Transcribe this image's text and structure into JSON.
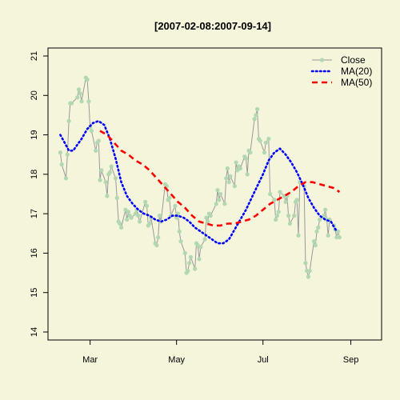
{
  "chart_data": {
    "type": "line",
    "title": "[2007-02-08:2007-09-14]",
    "xlabel": "",
    "ylabel": "",
    "x_range": [
      "2007-02-08",
      "2007-09-14"
    ],
    "ylim": [
      14,
      21
    ],
    "x_ticks": [
      {
        "date": "2007-03-01",
        "label": "Mar"
      },
      {
        "date": "2007-05-01",
        "label": "May"
      },
      {
        "date": "2007-07-01",
        "label": "Jul"
      },
      {
        "date": "2007-09-01",
        "label": "Sep"
      }
    ],
    "y_ticks": [
      14,
      15,
      16,
      17,
      18,
      19,
      20,
      21
    ],
    "grid": false,
    "legend_position": "top-right",
    "series": [
      {
        "name": "Close",
        "style": "points-line",
        "color": "#b2d8b2",
        "line_color": "#999999",
        "points": [
          [
            "2007-02-08",
            18.55
          ],
          [
            "2007-02-09",
            18.25
          ],
          [
            "2007-02-12",
            17.9
          ],
          [
            "2007-02-13",
            18.5
          ],
          [
            "2007-02-14",
            19.35
          ],
          [
            "2007-02-15",
            19.8
          ],
          [
            "2007-02-16",
            19.8
          ],
          [
            "2007-02-20",
            19.95
          ],
          [
            "2007-02-21",
            20.15
          ],
          [
            "2007-02-22",
            20.05
          ],
          [
            "2007-02-23",
            19.85
          ],
          [
            "2007-02-26",
            20.45
          ],
          [
            "2007-02-27",
            20.4
          ],
          [
            "2007-02-28",
            19.85
          ],
          [
            "2007-03-01",
            19.2
          ],
          [
            "2007-03-02",
            19.1
          ],
          [
            "2007-03-05",
            18.6
          ],
          [
            "2007-03-06",
            18.8
          ],
          [
            "2007-03-07",
            18.85
          ],
          [
            "2007-03-08",
            17.85
          ],
          [
            "2007-03-09",
            18.1
          ],
          [
            "2007-03-12",
            17.8
          ],
          [
            "2007-03-13",
            17.45
          ],
          [
            "2007-03-14",
            18.0
          ],
          [
            "2007-03-15",
            18.05
          ],
          [
            "2007-03-16",
            18.2
          ],
          [
            "2007-03-19",
            17.9
          ],
          [
            "2007-03-20",
            17.4
          ],
          [
            "2007-03-21",
            16.8
          ],
          [
            "2007-03-22",
            16.75
          ],
          [
            "2007-03-23",
            16.65
          ],
          [
            "2007-03-26",
            17.1
          ],
          [
            "2007-03-27",
            16.85
          ],
          [
            "2007-03-28",
            17.05
          ],
          [
            "2007-03-29",
            16.95
          ],
          [
            "2007-03-30",
            16.9
          ],
          [
            "2007-04-02",
            17.0
          ],
          [
            "2007-04-03",
            17.1
          ],
          [
            "2007-04-04",
            16.95
          ],
          [
            "2007-04-05",
            16.8
          ],
          [
            "2007-04-09",
            17.3
          ],
          [
            "2007-04-10",
            17.2
          ],
          [
            "2007-04-11",
            16.7
          ],
          [
            "2007-04-12",
            16.75
          ],
          [
            "2007-04-13",
            16.9
          ],
          [
            "2007-04-16",
            16.25
          ],
          [
            "2007-04-17",
            16.2
          ],
          [
            "2007-04-18",
            16.4
          ],
          [
            "2007-04-19",
            16.95
          ],
          [
            "2007-04-20",
            16.8
          ],
          [
            "2007-04-23",
            17.75
          ],
          [
            "2007-04-24",
            17.7
          ],
          [
            "2007-04-25",
            17.35
          ],
          [
            "2007-04-26",
            17.4
          ],
          [
            "2007-04-27",
            16.95
          ],
          [
            "2007-04-30",
            17.2
          ],
          [
            "2007-05-01",
            16.9
          ],
          [
            "2007-05-02",
            17.0
          ],
          [
            "2007-05-03",
            16.55
          ],
          [
            "2007-05-04",
            16.3
          ],
          [
            "2007-05-07",
            16.0
          ],
          [
            "2007-05-08",
            15.5
          ],
          [
            "2007-05-09",
            15.55
          ],
          [
            "2007-05-10",
            15.75
          ],
          [
            "2007-05-11",
            15.9
          ],
          [
            "2007-05-14",
            15.6
          ],
          [
            "2007-05-15",
            16.25
          ],
          [
            "2007-05-16",
            16.2
          ],
          [
            "2007-05-17",
            15.85
          ],
          [
            "2007-05-18",
            16.15
          ],
          [
            "2007-05-21",
            16.35
          ],
          [
            "2007-05-22",
            16.9
          ],
          [
            "2007-05-23",
            16.8
          ],
          [
            "2007-05-24",
            17.0
          ],
          [
            "2007-05-25",
            16.95
          ],
          [
            "2007-05-29",
            17.25
          ],
          [
            "2007-05-30",
            17.6
          ],
          [
            "2007-05-31",
            17.35
          ],
          [
            "2007-06-01",
            17.5
          ],
          [
            "2007-06-04",
            17.25
          ],
          [
            "2007-06-05",
            17.9
          ],
          [
            "2007-06-06",
            18.15
          ],
          [
            "2007-06-07",
            17.8
          ],
          [
            "2007-06-08",
            17.95
          ],
          [
            "2007-06-11",
            17.7
          ],
          [
            "2007-06-12",
            18.3
          ],
          [
            "2007-06-13",
            18.1
          ],
          [
            "2007-06-14",
            18.2
          ],
          [
            "2007-06-15",
            18.15
          ],
          [
            "2007-06-18",
            18.45
          ],
          [
            "2007-06-19",
            18.4
          ],
          [
            "2007-06-20",
            18.0
          ],
          [
            "2007-06-21",
            18.6
          ],
          [
            "2007-06-22",
            18.55
          ],
          [
            "2007-06-25",
            19.4
          ],
          [
            "2007-06-26",
            19.5
          ],
          [
            "2007-06-27",
            19.65
          ],
          [
            "2007-06-28",
            18.9
          ],
          [
            "2007-06-29",
            18.85
          ],
          [
            "2007-07-02",
            18.55
          ],
          [
            "2007-07-03",
            18.8
          ],
          [
            "2007-07-05",
            18.9
          ],
          [
            "2007-07-06",
            17.5
          ],
          [
            "2007-07-09",
            17.35
          ],
          [
            "2007-07-10",
            16.85
          ],
          [
            "2007-07-11",
            16.95
          ],
          [
            "2007-07-12",
            17.05
          ],
          [
            "2007-07-13",
            17.55
          ],
          [
            "2007-07-16",
            17.45
          ],
          [
            "2007-07-17",
            17.3
          ],
          [
            "2007-07-18",
            17.45
          ],
          [
            "2007-07-19",
            16.95
          ],
          [
            "2007-07-20",
            16.75
          ],
          [
            "2007-07-23",
            16.95
          ],
          [
            "2007-07-24",
            17.3
          ],
          [
            "2007-07-25",
            17.35
          ],
          [
            "2007-07-26",
            16.45
          ],
          [
            "2007-07-27",
            17.8
          ],
          [
            "2007-07-30",
            17.7
          ],
          [
            "2007-07-31",
            15.75
          ],
          [
            "2007-08-01",
            15.55
          ],
          [
            "2007-08-02",
            15.4
          ],
          [
            "2007-08-03",
            15.55
          ],
          [
            "2007-08-06",
            16.3
          ],
          [
            "2007-08-07",
            16.2
          ],
          [
            "2007-08-08",
            16.55
          ],
          [
            "2007-08-09",
            16.65
          ],
          [
            "2007-08-10",
            16.85
          ],
          [
            "2007-08-13",
            16.95
          ],
          [
            "2007-08-14",
            17.1
          ],
          [
            "2007-08-15",
            16.85
          ],
          [
            "2007-08-16",
            16.45
          ],
          [
            "2007-08-17",
            16.85
          ],
          [
            "2007-08-20",
            16.7
          ],
          [
            "2007-08-21",
            16.6
          ],
          [
            "2007-08-22",
            16.4
          ],
          [
            "2007-08-23",
            16.55
          ],
          [
            "2007-08-24",
            16.4
          ]
        ]
      },
      {
        "name": "MA(20)",
        "style": "dotted",
        "color": "#0000ff",
        "points": [
          [
            "2007-02-08",
            19.0
          ],
          [
            "2007-02-11",
            18.8
          ],
          [
            "2007-02-14",
            18.6
          ],
          [
            "2007-02-17",
            18.6
          ],
          [
            "2007-02-20",
            18.75
          ],
          [
            "2007-02-23",
            18.9
          ],
          [
            "2007-02-27",
            19.15
          ],
          [
            "2007-03-03",
            19.3
          ],
          [
            "2007-03-07",
            19.35
          ],
          [
            "2007-03-11",
            19.25
          ],
          [
            "2007-03-15",
            18.9
          ],
          [
            "2007-03-19",
            18.4
          ],
          [
            "2007-03-23",
            17.8
          ],
          [
            "2007-03-27",
            17.45
          ],
          [
            "2007-03-31",
            17.25
          ],
          [
            "2007-04-04",
            17.1
          ],
          [
            "2007-04-08",
            17.0
          ],
          [
            "2007-04-12",
            16.95
          ],
          [
            "2007-04-16",
            16.85
          ],
          [
            "2007-04-20",
            16.8
          ],
          [
            "2007-04-24",
            16.85
          ],
          [
            "2007-04-28",
            16.95
          ],
          [
            "2007-05-02",
            16.95
          ],
          [
            "2007-05-06",
            16.9
          ],
          [
            "2007-05-10",
            16.8
          ],
          [
            "2007-05-14",
            16.65
          ],
          [
            "2007-05-18",
            16.55
          ],
          [
            "2007-05-22",
            16.45
          ],
          [
            "2007-05-26",
            16.35
          ],
          [
            "2007-05-30",
            16.25
          ],
          [
            "2007-06-03",
            16.25
          ],
          [
            "2007-06-07",
            16.35
          ],
          [
            "2007-06-11",
            16.6
          ],
          [
            "2007-06-15",
            16.85
          ],
          [
            "2007-06-19",
            17.1
          ],
          [
            "2007-06-23",
            17.4
          ],
          [
            "2007-06-27",
            17.7
          ],
          [
            "2007-07-01",
            18.0
          ],
          [
            "2007-07-05",
            18.35
          ],
          [
            "2007-07-09",
            18.55
          ],
          [
            "2007-07-13",
            18.65
          ],
          [
            "2007-07-17",
            18.5
          ],
          [
            "2007-07-21",
            18.3
          ],
          [
            "2007-07-25",
            18.05
          ],
          [
            "2007-07-29",
            17.75
          ],
          [
            "2007-08-02",
            17.4
          ],
          [
            "2007-08-06",
            17.15
          ],
          [
            "2007-08-10",
            16.95
          ],
          [
            "2007-08-14",
            16.85
          ],
          [
            "2007-08-18",
            16.8
          ],
          [
            "2007-08-22",
            16.55
          ]
        ]
      },
      {
        "name": "MA(50)",
        "style": "dashed",
        "color": "#ff0000",
        "points": [
          [
            "2007-03-08",
            19.1
          ],
          [
            "2007-03-13",
            19.0
          ],
          [
            "2007-03-18",
            18.8
          ],
          [
            "2007-03-23",
            18.6
          ],
          [
            "2007-03-28",
            18.5
          ],
          [
            "2007-04-02",
            18.35
          ],
          [
            "2007-04-07",
            18.25
          ],
          [
            "2007-04-12",
            18.1
          ],
          [
            "2007-04-17",
            17.9
          ],
          [
            "2007-04-22",
            17.7
          ],
          [
            "2007-04-27",
            17.5
          ],
          [
            "2007-05-02",
            17.3
          ],
          [
            "2007-05-07",
            17.15
          ],
          [
            "2007-05-12",
            16.95
          ],
          [
            "2007-05-17",
            16.8
          ],
          [
            "2007-05-22",
            16.75
          ],
          [
            "2007-05-27",
            16.7
          ],
          [
            "2007-06-01",
            16.7
          ],
          [
            "2007-06-06",
            16.75
          ],
          [
            "2007-06-11",
            16.75
          ],
          [
            "2007-06-16",
            16.8
          ],
          [
            "2007-06-21",
            16.85
          ],
          [
            "2007-06-26",
            16.95
          ],
          [
            "2007-07-01",
            17.1
          ],
          [
            "2007-07-06",
            17.25
          ],
          [
            "2007-07-11",
            17.35
          ],
          [
            "2007-07-16",
            17.45
          ],
          [
            "2007-07-21",
            17.55
          ],
          [
            "2007-07-26",
            17.7
          ],
          [
            "2007-07-31",
            17.8
          ],
          [
            "2007-08-05",
            17.8
          ],
          [
            "2007-08-10",
            17.75
          ],
          [
            "2007-08-15",
            17.7
          ],
          [
            "2007-08-20",
            17.65
          ],
          [
            "2007-08-24",
            17.55
          ]
        ]
      }
    ]
  }
}
